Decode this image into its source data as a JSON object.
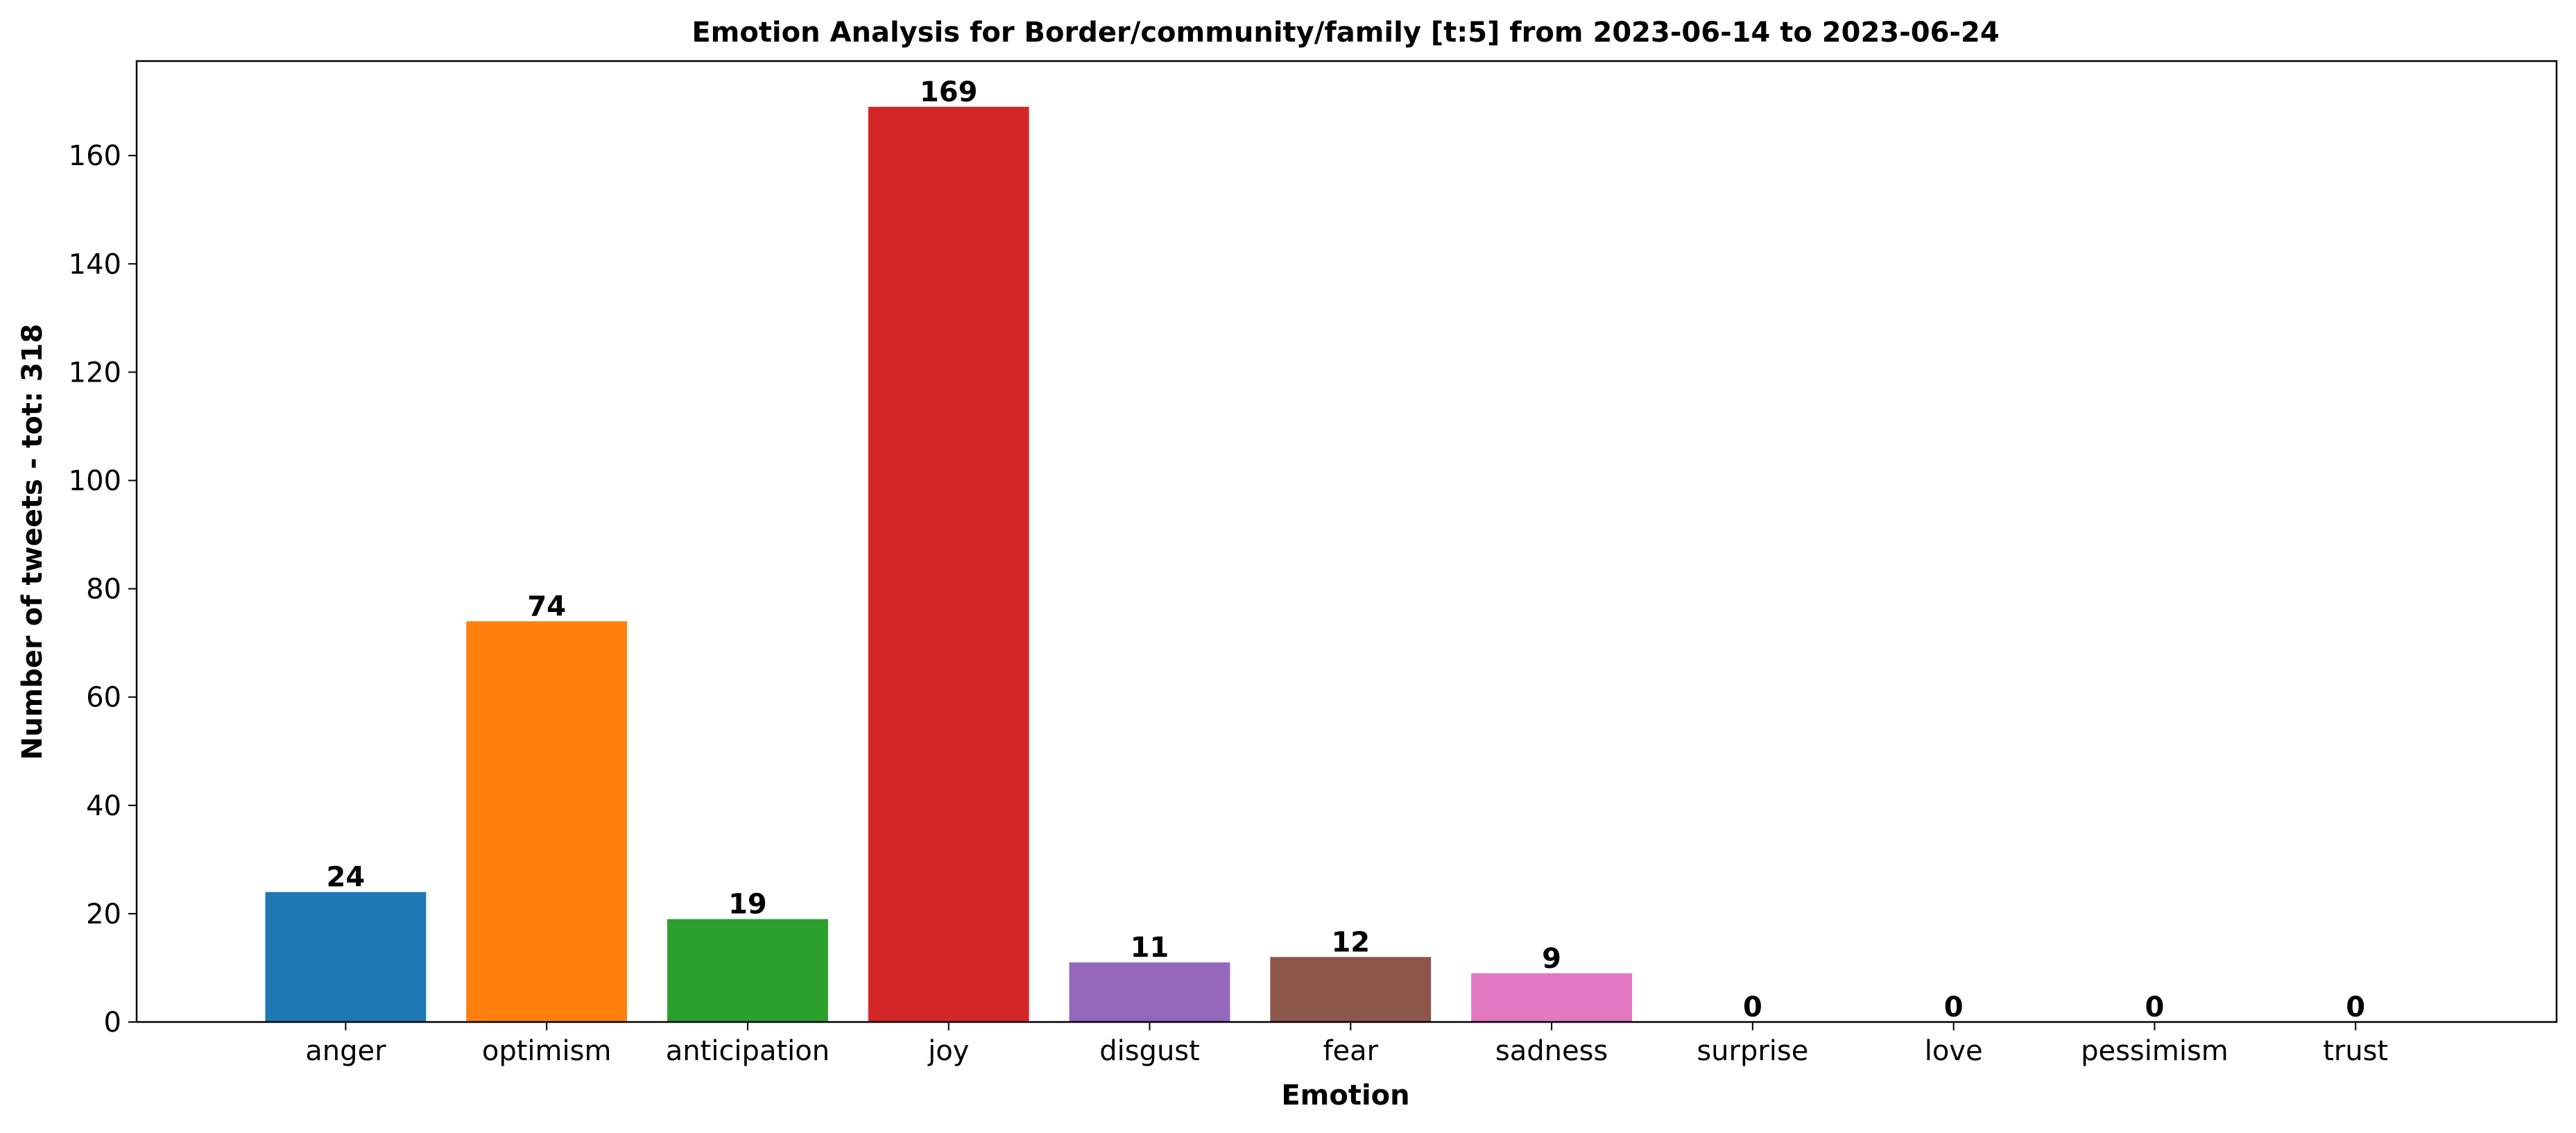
{
  "chart_data": {
    "type": "bar",
    "title": "Emotion Analysis for Border/community/family [t:5] from 2023-06-14 to 2023-06-24",
    "xlabel": "Emotion",
    "ylabel": "Number of tweets - tot: 318",
    "categories": [
      "anger",
      "optimism",
      "anticipation",
      "joy",
      "disgust",
      "fear",
      "sadness",
      "surprise",
      "love",
      "pessimism",
      "trust"
    ],
    "values": [
      24,
      74,
      19,
      169,
      11,
      12,
      9,
      0,
      0,
      0,
      0
    ],
    "colors": [
      "#1f77b4",
      "#ff7f0e",
      "#2ca02c",
      "#d62728",
      "#9467bd",
      "#8c564b",
      "#e377c2",
      "#7f7f7f",
      "#bcbd22",
      "#17becf",
      "#1f77b4"
    ],
    "ylim": [
      0,
      177.45
    ],
    "yticks": [
      0,
      20,
      40,
      60,
      80,
      100,
      120,
      140,
      160
    ],
    "grid": false,
    "legend": "none"
  }
}
